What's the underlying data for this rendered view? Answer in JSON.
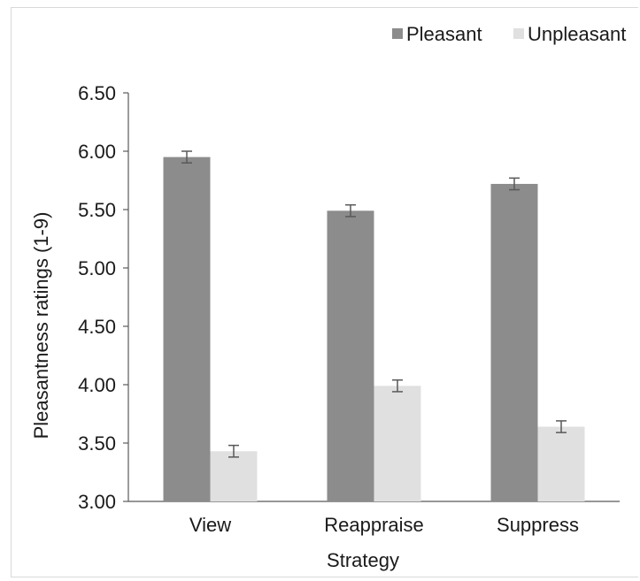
{
  "chart_data": {
    "type": "bar",
    "title": "",
    "xlabel": "Strategy",
    "ylabel": "Pleasantness ratings (1-9)",
    "ylim": [
      3.0,
      6.5
    ],
    "yticks": [
      "3.00",
      "3.50",
      "4.00",
      "4.50",
      "5.00",
      "5.50",
      "6.00",
      "6.50"
    ],
    "ytick_values": [
      3.0,
      3.5,
      4.0,
      4.5,
      5.0,
      5.5,
      6.0,
      6.5
    ],
    "categories": [
      "View",
      "Reappraise",
      "Suppress"
    ],
    "series": [
      {
        "name": "Pleasant",
        "color": "#8c8c8c",
        "values": [
          5.95,
          5.49,
          5.72
        ],
        "errors": [
          0.05,
          0.05,
          0.05
        ]
      },
      {
        "name": "Unpleasant",
        "color": "#e0e0e0",
        "values": [
          3.43,
          3.99,
          3.64
        ],
        "errors": [
          0.05,
          0.05,
          0.05
        ]
      }
    ],
    "legend_position": "top-right",
    "grid": false
  }
}
